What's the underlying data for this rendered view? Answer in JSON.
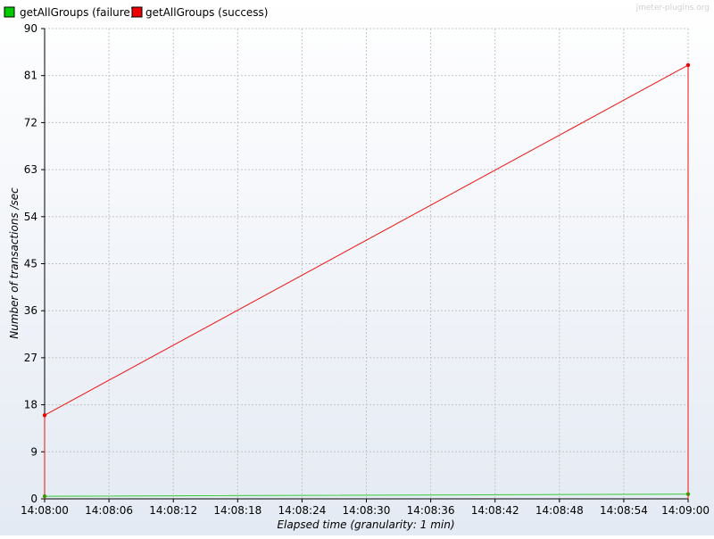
{
  "watermark": "jmeter-plugins.org",
  "colors": {
    "background_top": "#ffffff",
    "background_bottom": "#e4eaf3",
    "grid": "#c4c4c4",
    "axis": "#000000",
    "failure": "#00cc00",
    "failure_line": "#33cc33",
    "success": "#ee0000",
    "success_line": "#ee1111",
    "legend_border": "#000000"
  },
  "chart_data": {
    "type": "line",
    "title": "",
    "xlabel": "Elapsed time (granularity: 1 min)",
    "ylabel": "Number of transactions /sec",
    "xlim": [
      0,
      60
    ],
    "ylim": [
      0,
      90
    ],
    "y_ticks": [
      0,
      9,
      18,
      27,
      36,
      45,
      54,
      63,
      72,
      81,
      90
    ],
    "x_ticks": [
      0,
      6,
      12,
      18,
      24,
      30,
      36,
      42,
      48,
      54,
      60
    ],
    "x_tick_labels": [
      "14:08:00",
      "14:08:06",
      "14:08:12",
      "14:08:18",
      "14:08:24",
      "14:08:30",
      "14:08:36",
      "14:08:42",
      "14:08:48",
      "14:08:54",
      "14:09:00"
    ],
    "grid": true,
    "legend": "top-left",
    "series": [
      {
        "name": "getAllGroups (failure)",
        "color": "#00cc00",
        "x": [
          0,
          60
        ],
        "values": [
          0.5,
          0.9
        ]
      },
      {
        "name": "getAllGroups (success)",
        "color": "#ee0000",
        "x": [
          0,
          60
        ],
        "values": [
          16,
          83
        ]
      }
    ]
  }
}
